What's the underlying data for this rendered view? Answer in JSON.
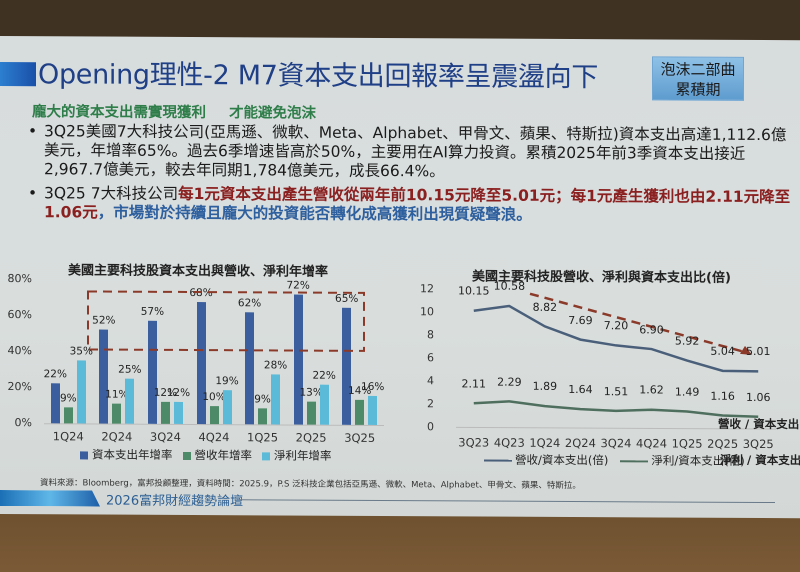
{
  "slide": {
    "title": "Opening理性-2  M7資本支出回報率呈震盪向下",
    "badge": {
      "line1": "泡沫二部曲",
      "line2": "累積期"
    },
    "subtitle": {
      "part1": "龐大的資本支出需實現獲利",
      "part2": "才能避免泡沫"
    },
    "bullets": [
      {
        "dot": "•",
        "text": "3Q25美國7大科技公司(亞馬遜、微軟、Meta、Alphabet、甲骨文、蘋果、特斯拉)資本支出高達1,112.6億美元，年增率65%。過去6季增速皆高於50%，主要用在AI算力投資。累積2025年前3季資本支出接近2,967.7億美元，較去年同期1,784億美元，成長66.4%。"
      },
      {
        "dot": "•",
        "prefix": "3Q25  7大科技公司",
        "red": "每1元資本支出產生營收從兩年前10.15元降至5.01元；每1元產生獲利也由2.11元降至1.06元",
        "blue": "，市場對於持續且龐大的投資能否轉化成高獲利出現質疑聲浪。"
      }
    ],
    "source": "資料來源：Bloomberg，富邦投顧整理，資料時間：2025.9，P.S 泛科技企業包括亞馬遜、微軟、Meta、Alphabet、甲骨文、蘋果、特斯拉。",
    "footer": "2026富邦財經趨勢論壇"
  },
  "chart_data": [
    {
      "type": "bar",
      "title": "美國主要科技股資本支出與營收、淨利年增率",
      "categories": [
        "1Q24",
        "2Q24",
        "3Q24",
        "4Q24",
        "1Q25",
        "2Q25",
        "3Q25"
      ],
      "series": [
        {
          "name": "資本支出年增率",
          "color": "#3b5f9e",
          "values": [
            22,
            52,
            57,
            68,
            62,
            72,
            65
          ]
        },
        {
          "name": "營收年增率",
          "color": "#4d8a67",
          "values": [
            9,
            11,
            12,
            10,
            9,
            13,
            14
          ]
        },
        {
          "name": "淨利年增率",
          "color": "#5bbad8",
          "values": [
            35,
            25,
            12,
            19,
            28,
            22,
            16
          ]
        }
      ],
      "yticks": [
        "0%",
        "20%",
        "40%",
        "60%",
        "80%"
      ],
      "ylim": [
        0,
        80
      ],
      "ylabel": "",
      "xlabel": "",
      "annotation": "dashed box highlighting capex growth above 40% from 2Q24 to 3Q25",
      "legend_position": "bottom"
    },
    {
      "type": "line",
      "title": "美國主要科技股營收、淨利與資本支出比(倍)",
      "categories": [
        "3Q23",
        "4Q23",
        "1Q24",
        "2Q24",
        "3Q24",
        "4Q24",
        "1Q25",
        "2Q25",
        "3Q25"
      ],
      "series": [
        {
          "name": "營收/資本支出(倍)",
          "color": "#4a5f7a",
          "values": [
            10.15,
            10.58,
            8.82,
            7.69,
            7.2,
            6.9,
            5.92,
            5.04,
            5.01
          ]
        },
        {
          "name": "淨利/資本支出(倍)",
          "color": "#4f6f5e",
          "values": [
            2.11,
            2.29,
            1.89,
            1.64,
            1.51,
            1.62,
            1.49,
            1.16,
            1.06
          ]
        }
      ],
      "yticks": [
        "0",
        "2",
        "4",
        "6",
        "8",
        "10",
        "12"
      ],
      "ylim": [
        0,
        12
      ],
      "series_notes": [
        "營收 / 資本支出",
        "淨利 / 資本支出"
      ],
      "annotation": "dashed downward trend arrow over revenue/capex line",
      "legend_position": "bottom"
    }
  ]
}
